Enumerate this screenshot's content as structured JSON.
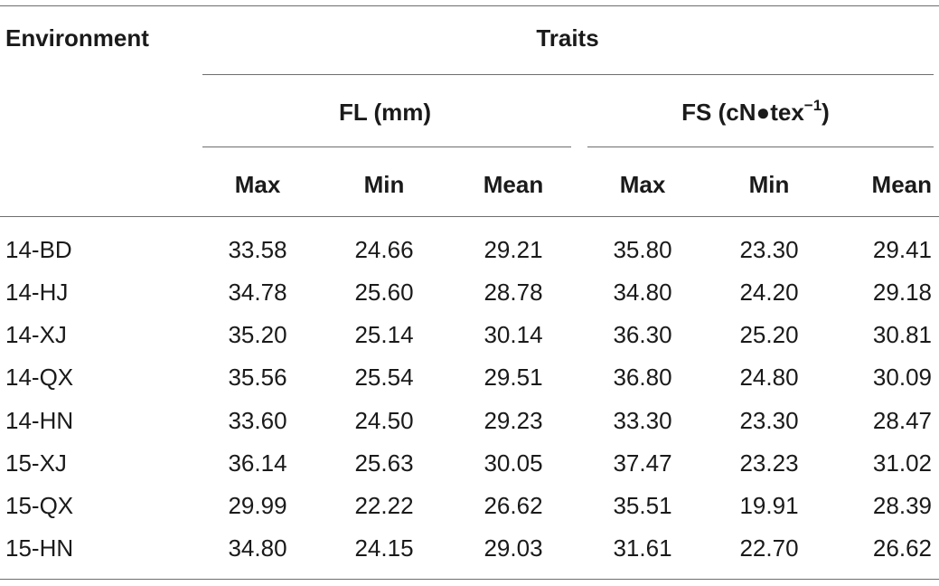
{
  "table": {
    "headers": {
      "environment": "Environment",
      "traits": "Traits",
      "fl_group": "FL (mm)",
      "fs_group_base": "FS (cN●tex",
      "fs_group_sup": "−1",
      "fs_group_close": ")",
      "columns": [
        "Max",
        "Min",
        "Mean",
        "Max",
        "Min",
        "Mean"
      ]
    },
    "rows": [
      {
        "environment": "14-BD",
        "values": [
          "33.58",
          "24.66",
          "29.21",
          "35.80",
          "23.30",
          "29.41"
        ]
      },
      {
        "environment": "14-HJ",
        "values": [
          "34.78",
          "25.60",
          "28.78",
          "34.80",
          "24.20",
          "29.18"
        ]
      },
      {
        "environment": "14-XJ",
        "values": [
          "35.20",
          "25.14",
          "30.14",
          "36.30",
          "25.20",
          "30.81"
        ]
      },
      {
        "environment": "14-QX",
        "values": [
          "35.56",
          "25.54",
          "29.51",
          "36.80",
          "24.80",
          "30.09"
        ]
      },
      {
        "environment": "14-HN",
        "values": [
          "33.60",
          "24.50",
          "29.23",
          "33.30",
          "23.30",
          "28.47"
        ]
      },
      {
        "environment": "15-XJ",
        "values": [
          "36.14",
          "25.63",
          "30.05",
          "37.47",
          "23.23",
          "31.02"
        ]
      },
      {
        "environment": "15-QX",
        "values": [
          "29.99",
          "22.22",
          "26.62",
          "35.51",
          "19.91",
          "28.39"
        ]
      },
      {
        "environment": "15-HN",
        "values": [
          "34.80",
          "24.15",
          "29.03",
          "31.61",
          "22.70",
          "26.62"
        ]
      }
    ]
  }
}
